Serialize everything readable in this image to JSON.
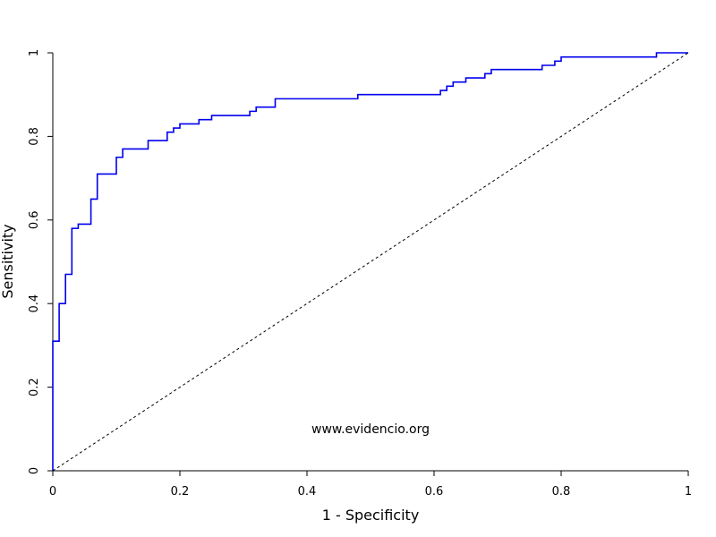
{
  "chart_data": {
    "type": "line",
    "xlabel": "1 - Specificity",
    "ylabel": "Sensitivity",
    "xlim": [
      0,
      1
    ],
    "ylim": [
      0,
      1
    ],
    "x_ticks": [
      0,
      0.2,
      0.4,
      0.6,
      0.8,
      1
    ],
    "y_ticks": [
      0,
      0.2,
      0.4,
      0.6,
      0.8,
      1
    ],
    "x_tick_labels": [
      "0",
      "0.2",
      "0.4",
      "0.6",
      "0.8",
      "1"
    ],
    "y_tick_labels": [
      "0",
      "0.2",
      "0.4",
      "0.6",
      "0.8",
      "1"
    ],
    "grid": false,
    "annotation": "www.evidencio.org",
    "series": [
      {
        "color": "#0000ee",
        "style": "step",
        "points": [
          [
            0,
            0
          ],
          [
            0,
            0.31
          ],
          [
            0.01,
            0.31
          ],
          [
            0.01,
            0.4
          ],
          [
            0.02,
            0.4
          ],
          [
            0.02,
            0.47
          ],
          [
            0.03,
            0.47
          ],
          [
            0.03,
            0.58
          ],
          [
            0.04,
            0.58
          ],
          [
            0.04,
            0.59
          ],
          [
            0.06,
            0.59
          ],
          [
            0.06,
            0.65
          ],
          [
            0.07,
            0.65
          ],
          [
            0.07,
            0.71
          ],
          [
            0.1,
            0.71
          ],
          [
            0.1,
            0.75
          ],
          [
            0.11,
            0.75
          ],
          [
            0.11,
            0.77
          ],
          [
            0.15,
            0.77
          ],
          [
            0.15,
            0.79
          ],
          [
            0.18,
            0.79
          ],
          [
            0.18,
            0.81
          ],
          [
            0.19,
            0.81
          ],
          [
            0.19,
            0.82
          ],
          [
            0.2,
            0.82
          ],
          [
            0.2,
            0.83
          ],
          [
            0.21,
            0.83
          ],
          [
            0.21,
            0.83
          ],
          [
            0.23,
            0.83
          ],
          [
            0.23,
            0.84
          ],
          [
            0.25,
            0.84
          ],
          [
            0.25,
            0.85
          ],
          [
            0.31,
            0.85
          ],
          [
            0.31,
            0.86
          ],
          [
            0.32,
            0.86
          ],
          [
            0.32,
            0.87
          ],
          [
            0.35,
            0.87
          ],
          [
            0.35,
            0.89
          ],
          [
            0.48,
            0.89
          ],
          [
            0.48,
            0.9
          ],
          [
            0.59,
            0.9
          ],
          [
            0.59,
            0.9
          ],
          [
            0.61,
            0.9
          ],
          [
            0.61,
            0.91
          ],
          [
            0.62,
            0.91
          ],
          [
            0.62,
            0.92
          ],
          [
            0.63,
            0.92
          ],
          [
            0.63,
            0.93
          ],
          [
            0.65,
            0.93
          ],
          [
            0.65,
            0.94
          ],
          [
            0.68,
            0.94
          ],
          [
            0.68,
            0.95
          ],
          [
            0.69,
            0.95
          ],
          [
            0.69,
            0.96
          ],
          [
            0.76,
            0.96
          ],
          [
            0.76,
            0.96
          ],
          [
            0.77,
            0.96
          ],
          [
            0.77,
            0.97
          ],
          [
            0.79,
            0.97
          ],
          [
            0.79,
            0.98
          ],
          [
            0.8,
            0.98
          ],
          [
            0.8,
            0.99
          ],
          [
            0.83,
            0.99
          ],
          [
            0.83,
            0.99
          ],
          [
            0.95,
            0.99
          ],
          [
            0.95,
            1.0
          ],
          [
            1.0,
            1.0
          ]
        ]
      },
      {
        "color": "#000000",
        "style": "dashed",
        "points": [
          [
            0,
            0
          ],
          [
            1,
            1
          ]
        ]
      }
    ]
  }
}
